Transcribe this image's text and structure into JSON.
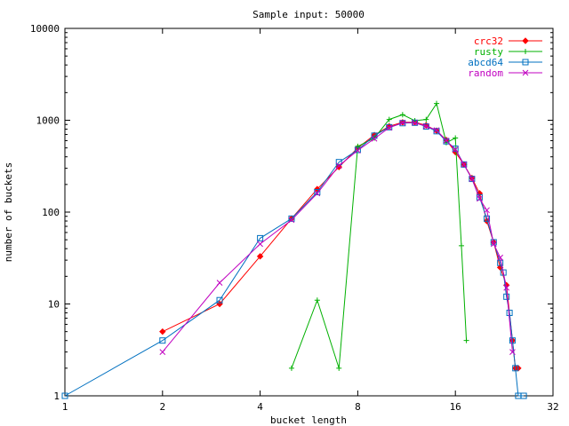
{
  "chart_data": {
    "type": "line",
    "title": "Sample input: 50000",
    "xlabel": "bucket length",
    "ylabel": "number of buckets",
    "x_scale": "log2",
    "y_scale": "log10",
    "xlim": [
      1,
      32
    ],
    "ylim": [
      1,
      10000
    ],
    "x_ticks": [
      1,
      2,
      4,
      8,
      16,
      32
    ],
    "x_tick_labels": [
      "1",
      "2",
      "4",
      "8",
      "16",
      "32"
    ],
    "y_ticks": [
      1,
      10,
      100,
      1000,
      10000
    ],
    "y_tick_labels": [
      "1",
      "10",
      "100",
      "1000",
      "10000"
    ],
    "grid": false,
    "legend_position": "top-right",
    "series": [
      {
        "name": "crc32",
        "color": "#ff0000",
        "marker": "diamond",
        "x": [
          2,
          3,
          4,
          5,
          6,
          7,
          8,
          9,
          10,
          11,
          12,
          13,
          14,
          15,
          16,
          17,
          18,
          19,
          20,
          21,
          22,
          23,
          24,
          24.5,
          25,
          25.5,
          26
        ],
        "y": [
          5,
          10,
          33,
          85,
          178,
          310,
          500,
          690,
          860,
          950,
          950,
          880,
          770,
          610,
          450,
          330,
          235,
          160,
          80,
          47,
          25,
          16,
          4,
          2,
          2,
          null,
          null
        ]
      },
      {
        "name": "rusty",
        "color": "#00b000",
        "marker": "plus",
        "x": [
          5,
          6,
          7,
          8,
          9,
          10,
          11,
          12,
          13,
          14,
          15,
          16,
          16.7,
          17.3
        ],
        "y": [
          2,
          11,
          2,
          520,
          640,
          1020,
          1150,
          990,
          1020,
          1520,
          570,
          640,
          43,
          4
        ]
      },
      {
        "name": "abcd64",
        "color": "#0070c0",
        "marker": "square",
        "x": [
          1,
          2,
          3,
          4,
          5,
          6,
          7,
          8,
          9,
          10,
          11,
          12,
          13,
          14,
          15,
          16,
          17,
          18,
          19,
          20,
          21,
          22,
          22.5,
          23,
          23.5,
          24,
          24.5,
          25,
          26
        ],
        "y": [
          1,
          4,
          11,
          52,
          85,
          165,
          350,
          475,
          680,
          840,
          930,
          940,
          855,
          760,
          590,
          490,
          330,
          230,
          145,
          85,
          47,
          28,
          22,
          12,
          8,
          4,
          2,
          1,
          1
        ]
      },
      {
        "name": "random",
        "color": "#c000c0",
        "marker": "cross",
        "x": [
          2,
          3,
          4,
          5,
          6,
          7,
          8,
          9,
          10,
          11,
          12,
          13,
          14,
          15,
          16,
          17,
          18,
          19,
          20,
          21,
          22,
          23,
          24
        ],
        "y": [
          3,
          17,
          45,
          82,
          160,
          320,
          470,
          630,
          830,
          940,
          940,
          860,
          780,
          600,
          480,
          330,
          230,
          140,
          105,
          45,
          32,
          15,
          3
        ]
      }
    ]
  }
}
